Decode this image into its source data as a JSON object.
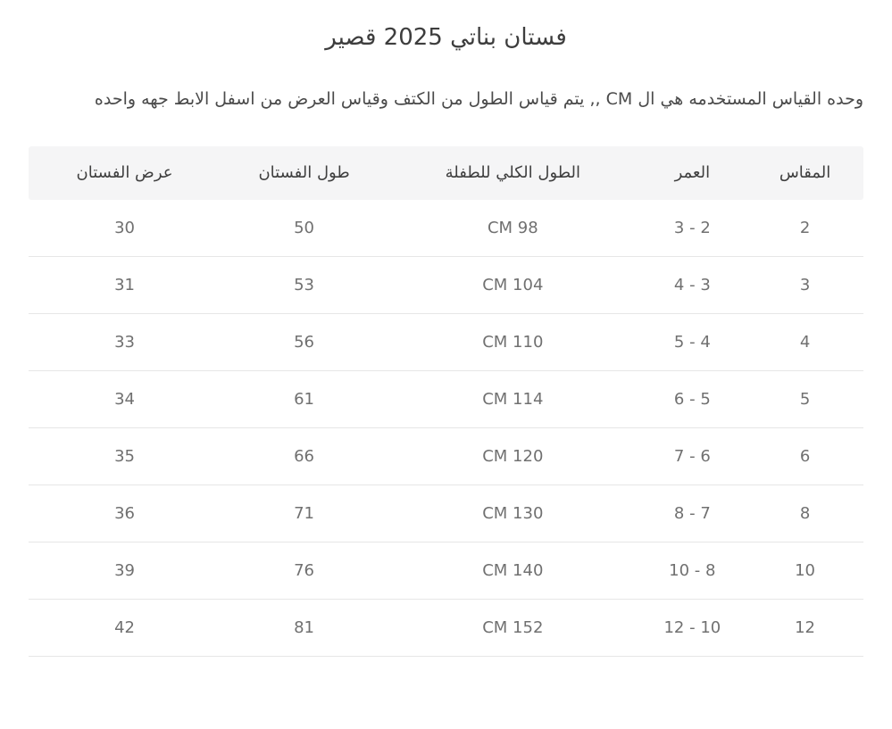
{
  "page": {
    "title": "فستان بناتي 2025 قصير",
    "description": "وحده القياس المستخدمه هي ال CM ,, يتم قياس الطول من الكتف وقياس العرض من اسفل الابط جهه واحده"
  },
  "table": {
    "headers": [
      "المقاس",
      "العمر",
      "الطول الكلي للطفلة",
      "طول الفستان",
      "عرض الفستان"
    ],
    "rows": [
      [
        "2",
        "2 - 3",
        "98 CM",
        "50",
        "30"
      ],
      [
        "3",
        "3 - 4",
        "104 CM",
        "53",
        "31"
      ],
      [
        "4",
        "4 - 5",
        "110 CM",
        "56",
        "33"
      ],
      [
        "5",
        "5 - 6",
        "114 CM",
        "61",
        "34"
      ],
      [
        "6",
        "6 - 7",
        "120 CM",
        "66",
        "35"
      ],
      [
        "8",
        "7 - 8",
        "130 CM",
        "71",
        "36"
      ],
      [
        "10",
        "8 - 10",
        "140 CM",
        "76",
        "39"
      ],
      [
        "12",
        "10 - 12",
        "152 CM",
        "81",
        "42"
      ]
    ]
  },
  "colors": {
    "title_text": "#3d3d3d",
    "body_text": "#4a4a4a",
    "header_bg": "#f5f5f6",
    "header_text": "#3f3f3f",
    "cell_text": "#707070",
    "row_divider": "#e6e6e6"
  }
}
